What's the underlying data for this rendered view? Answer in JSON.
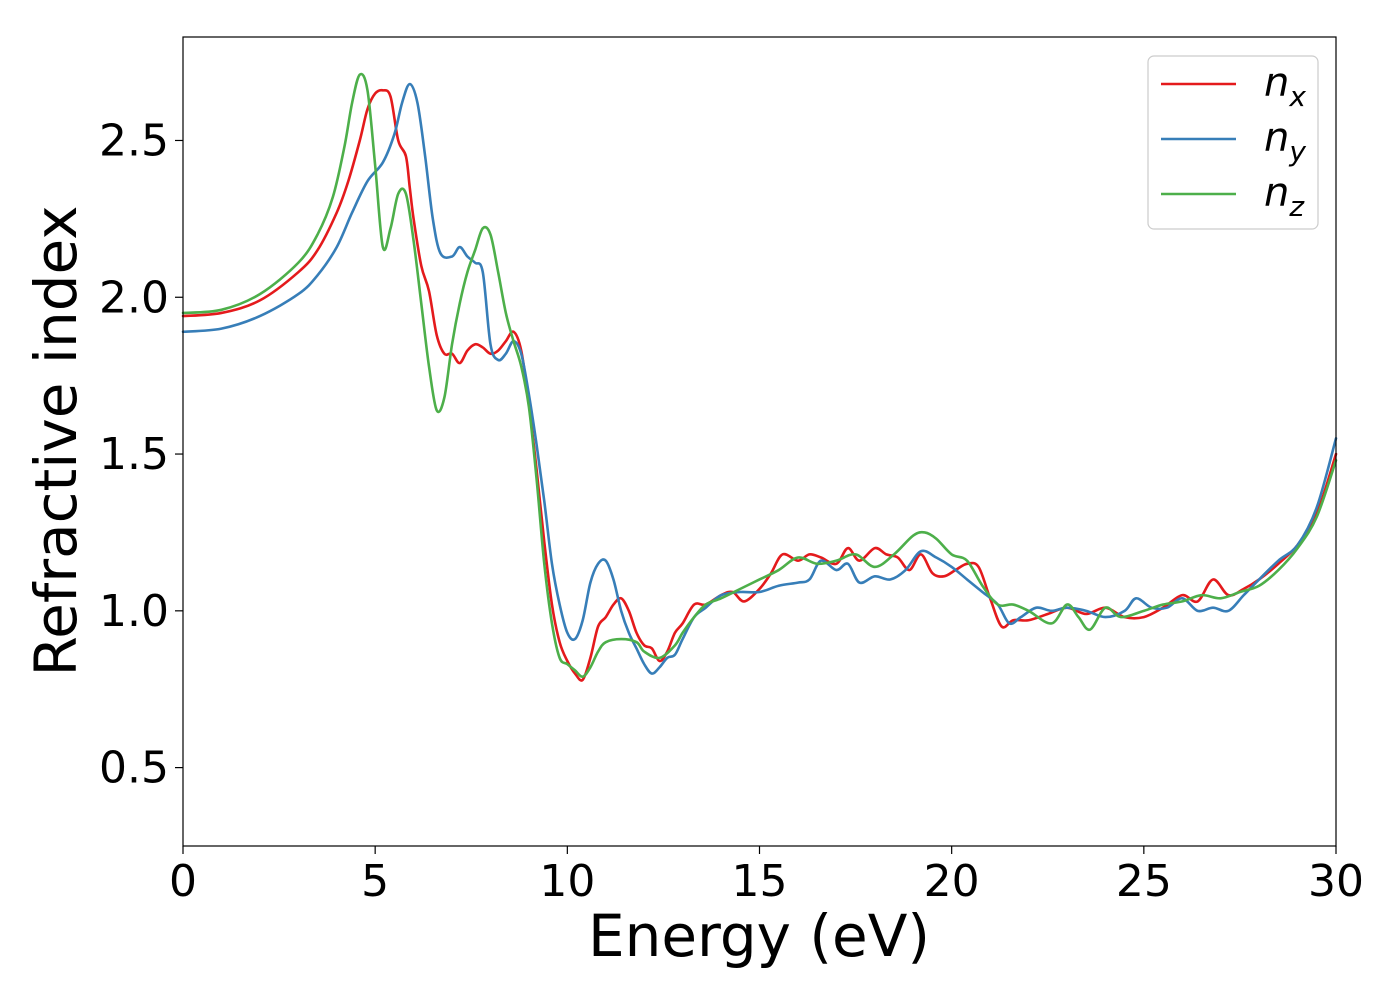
{
  "chart_data": {
    "type": "line",
    "title": "",
    "xlabel": "Energy (eV)",
    "ylabel": "Refractive index",
    "xlim": [
      0,
      30
    ],
    "ylim": [
      0.25,
      2.83
    ],
    "xticks": [
      0,
      5,
      10,
      15,
      20,
      25,
      30
    ],
    "xtick_labels": [
      "0",
      "5",
      "10",
      "15",
      "20",
      "25",
      "30"
    ],
    "yticks": [
      0.5,
      1.0,
      1.5,
      2.0,
      2.5
    ],
    "ytick_labels": [
      "0.5",
      "1.0",
      "1.5",
      "2.0",
      "2.5"
    ],
    "grid": false,
    "legend_position": "top-right",
    "series": [
      {
        "name": "n_x",
        "legend_base": "n",
        "legend_sub": "x",
        "color": "#e41a1c",
        "points": [
          [
            0,
            1.94
          ],
          [
            1,
            1.95
          ],
          [
            2,
            1.99
          ],
          [
            3,
            2.08
          ],
          [
            3.5,
            2.15
          ],
          [
            4,
            2.27
          ],
          [
            4.3,
            2.37
          ],
          [
            4.6,
            2.5
          ],
          [
            4.8,
            2.6
          ],
          [
            5.0,
            2.65
          ],
          [
            5.2,
            2.66
          ],
          [
            5.4,
            2.64
          ],
          [
            5.6,
            2.5
          ],
          [
            5.8,
            2.45
          ],
          [
            5.9,
            2.35
          ],
          [
            6.0,
            2.25
          ],
          [
            6.2,
            2.1
          ],
          [
            6.4,
            2.02
          ],
          [
            6.6,
            1.88
          ],
          [
            6.8,
            1.82
          ],
          [
            7.0,
            1.82
          ],
          [
            7.2,
            1.79
          ],
          [
            7.4,
            1.83
          ],
          [
            7.6,
            1.85
          ],
          [
            7.8,
            1.84
          ],
          [
            8.0,
            1.82
          ],
          [
            8.2,
            1.83
          ],
          [
            8.4,
            1.86
          ],
          [
            8.6,
            1.89
          ],
          [
            8.8,
            1.83
          ],
          [
            9.0,
            1.66
          ],
          [
            9.2,
            1.45
          ],
          [
            9.4,
            1.22
          ],
          [
            9.6,
            1.02
          ],
          [
            9.8,
            0.9
          ],
          [
            10.0,
            0.84
          ],
          [
            10.2,
            0.8
          ],
          [
            10.4,
            0.78
          ],
          [
            10.6,
            0.85
          ],
          [
            10.8,
            0.95
          ],
          [
            11.0,
            0.98
          ],
          [
            11.2,
            1.02
          ],
          [
            11.4,
            1.04
          ],
          [
            11.6,
            1.0
          ],
          [
            11.8,
            0.93
          ],
          [
            12.0,
            0.89
          ],
          [
            12.2,
            0.88
          ],
          [
            12.4,
            0.84
          ],
          [
            12.6,
            0.87
          ],
          [
            12.8,
            0.93
          ],
          [
            13.0,
            0.96
          ],
          [
            13.3,
            1.02
          ],
          [
            13.6,
            1.02
          ],
          [
            14.0,
            1.05
          ],
          [
            14.3,
            1.06
          ],
          [
            14.6,
            1.03
          ],
          [
            15.0,
            1.07
          ],
          [
            15.3,
            1.12
          ],
          [
            15.6,
            1.18
          ],
          [
            16.0,
            1.16
          ],
          [
            16.3,
            1.18
          ],
          [
            16.6,
            1.17
          ],
          [
            17.0,
            1.15
          ],
          [
            17.3,
            1.2
          ],
          [
            17.6,
            1.16
          ],
          [
            18.0,
            1.2
          ],
          [
            18.3,
            1.18
          ],
          [
            18.6,
            1.17
          ],
          [
            18.9,
            1.13
          ],
          [
            19.2,
            1.18
          ],
          [
            19.5,
            1.12
          ],
          [
            19.8,
            1.11
          ],
          [
            20.1,
            1.13
          ],
          [
            20.4,
            1.15
          ],
          [
            20.7,
            1.14
          ],
          [
            21.0,
            1.04
          ],
          [
            21.3,
            0.95
          ],
          [
            21.6,
            0.97
          ],
          [
            22.0,
            0.97
          ],
          [
            22.5,
            0.99
          ],
          [
            23.0,
            1.01
          ],
          [
            23.5,
            0.99
          ],
          [
            24.0,
            1.01
          ],
          [
            24.5,
            0.98
          ],
          [
            25.0,
            0.98
          ],
          [
            25.5,
            1.01
          ],
          [
            26.0,
            1.05
          ],
          [
            26.4,
            1.03
          ],
          [
            26.8,
            1.1
          ],
          [
            27.2,
            1.05
          ],
          [
            27.6,
            1.07
          ],
          [
            28.0,
            1.1
          ],
          [
            28.5,
            1.15
          ],
          [
            29.0,
            1.21
          ],
          [
            29.5,
            1.31
          ],
          [
            30.0,
            1.5
          ]
        ]
      },
      {
        "name": "n_y",
        "legend_base": "n",
        "legend_sub": "y",
        "color": "#377eb8",
        "points": [
          [
            0,
            1.89
          ],
          [
            1,
            1.9
          ],
          [
            2,
            1.94
          ],
          [
            3,
            2.01
          ],
          [
            3.5,
            2.07
          ],
          [
            4,
            2.16
          ],
          [
            4.4,
            2.27
          ],
          [
            4.8,
            2.37
          ],
          [
            5.2,
            2.43
          ],
          [
            5.5,
            2.52
          ],
          [
            5.7,
            2.62
          ],
          [
            5.9,
            2.68
          ],
          [
            6.1,
            2.62
          ],
          [
            6.3,
            2.45
          ],
          [
            6.5,
            2.25
          ],
          [
            6.7,
            2.14
          ],
          [
            7.0,
            2.13
          ],
          [
            7.2,
            2.16
          ],
          [
            7.4,
            2.13
          ],
          [
            7.6,
            2.11
          ],
          [
            7.8,
            2.08
          ],
          [
            8.0,
            1.85
          ],
          [
            8.2,
            1.8
          ],
          [
            8.4,
            1.82
          ],
          [
            8.6,
            1.86
          ],
          [
            8.8,
            1.82
          ],
          [
            9.0,
            1.69
          ],
          [
            9.2,
            1.53
          ],
          [
            9.4,
            1.35
          ],
          [
            9.6,
            1.15
          ],
          [
            9.8,
            1.02
          ],
          [
            10.0,
            0.93
          ],
          [
            10.2,
            0.91
          ],
          [
            10.4,
            0.97
          ],
          [
            10.6,
            1.09
          ],
          [
            10.8,
            1.15
          ],
          [
            11.0,
            1.16
          ],
          [
            11.2,
            1.1
          ],
          [
            11.4,
            1.0
          ],
          [
            11.6,
            0.93
          ],
          [
            11.8,
            0.88
          ],
          [
            12.0,
            0.83
          ],
          [
            12.2,
            0.8
          ],
          [
            12.4,
            0.82
          ],
          [
            12.6,
            0.85
          ],
          [
            12.8,
            0.86
          ],
          [
            13.0,
            0.91
          ],
          [
            13.3,
            0.98
          ],
          [
            13.6,
            1.01
          ],
          [
            14.0,
            1.05
          ],
          [
            14.5,
            1.06
          ],
          [
            15.0,
            1.06
          ],
          [
            15.5,
            1.08
          ],
          [
            16.0,
            1.09
          ],
          [
            16.3,
            1.1
          ],
          [
            16.6,
            1.16
          ],
          [
            17.0,
            1.13
          ],
          [
            17.3,
            1.15
          ],
          [
            17.6,
            1.09
          ],
          [
            18.0,
            1.11
          ],
          [
            18.4,
            1.1
          ],
          [
            18.8,
            1.13
          ],
          [
            19.2,
            1.19
          ],
          [
            19.6,
            1.17
          ],
          [
            20.0,
            1.14
          ],
          [
            20.4,
            1.1
          ],
          [
            20.8,
            1.06
          ],
          [
            21.2,
            1.02
          ],
          [
            21.5,
            0.96
          ],
          [
            21.8,
            0.98
          ],
          [
            22.2,
            1.01
          ],
          [
            22.6,
            1.0
          ],
          [
            23.0,
            1.01
          ],
          [
            23.5,
            1.0
          ],
          [
            24.0,
            0.98
          ],
          [
            24.5,
            1.0
          ],
          [
            24.8,
            1.04
          ],
          [
            25.2,
            1.01
          ],
          [
            25.6,
            1.01
          ],
          [
            26.0,
            1.04
          ],
          [
            26.4,
            1.0
          ],
          [
            26.8,
            1.01
          ],
          [
            27.2,
            1.0
          ],
          [
            27.6,
            1.05
          ],
          [
            28.0,
            1.1
          ],
          [
            28.5,
            1.16
          ],
          [
            29.0,
            1.21
          ],
          [
            29.5,
            1.33
          ],
          [
            30.0,
            1.55
          ]
        ]
      },
      {
        "name": "n_z",
        "legend_base": "n",
        "legend_sub": "z",
        "color": "#4daf4a",
        "points": [
          [
            0,
            1.95
          ],
          [
            1,
            1.96
          ],
          [
            2,
            2.01
          ],
          [
            3,
            2.11
          ],
          [
            3.5,
            2.2
          ],
          [
            3.9,
            2.32
          ],
          [
            4.2,
            2.48
          ],
          [
            4.4,
            2.62
          ],
          [
            4.6,
            2.71
          ],
          [
            4.8,
            2.66
          ],
          [
            5.0,
            2.42
          ],
          [
            5.2,
            2.16
          ],
          [
            5.4,
            2.22
          ],
          [
            5.6,
            2.33
          ],
          [
            5.8,
            2.33
          ],
          [
            6.0,
            2.18
          ],
          [
            6.2,
            1.98
          ],
          [
            6.4,
            1.78
          ],
          [
            6.6,
            1.64
          ],
          [
            6.8,
            1.68
          ],
          [
            7.0,
            1.85
          ],
          [
            7.2,
            1.98
          ],
          [
            7.4,
            2.08
          ],
          [
            7.6,
            2.15
          ],
          [
            7.8,
            2.22
          ],
          [
            8.0,
            2.2
          ],
          [
            8.2,
            2.08
          ],
          [
            8.4,
            1.95
          ],
          [
            8.6,
            1.86
          ],
          [
            8.8,
            1.78
          ],
          [
            9.0,
            1.65
          ],
          [
            9.2,
            1.42
          ],
          [
            9.4,
            1.15
          ],
          [
            9.6,
            0.96
          ],
          [
            9.8,
            0.85
          ],
          [
            10.0,
            0.83
          ],
          [
            10.2,
            0.81
          ],
          [
            10.4,
            0.79
          ],
          [
            10.6,
            0.82
          ],
          [
            10.8,
            0.87
          ],
          [
            11.0,
            0.9
          ],
          [
            11.4,
            0.91
          ],
          [
            11.8,
            0.9
          ],
          [
            12.0,
            0.87
          ],
          [
            12.4,
            0.85
          ],
          [
            12.8,
            0.89
          ],
          [
            13.0,
            0.93
          ],
          [
            13.3,
            0.98
          ],
          [
            13.6,
            1.02
          ],
          [
            14.0,
            1.04
          ],
          [
            14.5,
            1.07
          ],
          [
            15.0,
            1.1
          ],
          [
            15.5,
            1.13
          ],
          [
            16.0,
            1.17
          ],
          [
            16.5,
            1.15
          ],
          [
            17.0,
            1.16
          ],
          [
            17.5,
            1.18
          ],
          [
            18.0,
            1.14
          ],
          [
            18.5,
            1.18
          ],
          [
            19.0,
            1.24
          ],
          [
            19.3,
            1.25
          ],
          [
            19.6,
            1.23
          ],
          [
            20.0,
            1.18
          ],
          [
            20.4,
            1.16
          ],
          [
            20.8,
            1.08
          ],
          [
            21.2,
            1.02
          ],
          [
            21.6,
            1.02
          ],
          [
            22.0,
            1.0
          ],
          [
            22.6,
            0.96
          ],
          [
            23.0,
            1.02
          ],
          [
            23.3,
            0.98
          ],
          [
            23.6,
            0.94
          ],
          [
            24.0,
            1.01
          ],
          [
            24.4,
            0.98
          ],
          [
            25.0,
            1.0
          ],
          [
            25.5,
            1.02
          ],
          [
            26.0,
            1.03
          ],
          [
            26.5,
            1.05
          ],
          [
            27.0,
            1.04
          ],
          [
            27.5,
            1.06
          ],
          [
            28.0,
            1.08
          ],
          [
            28.5,
            1.13
          ],
          [
            29.0,
            1.2
          ],
          [
            29.5,
            1.3
          ],
          [
            30.0,
            1.48
          ]
        ]
      }
    ]
  }
}
